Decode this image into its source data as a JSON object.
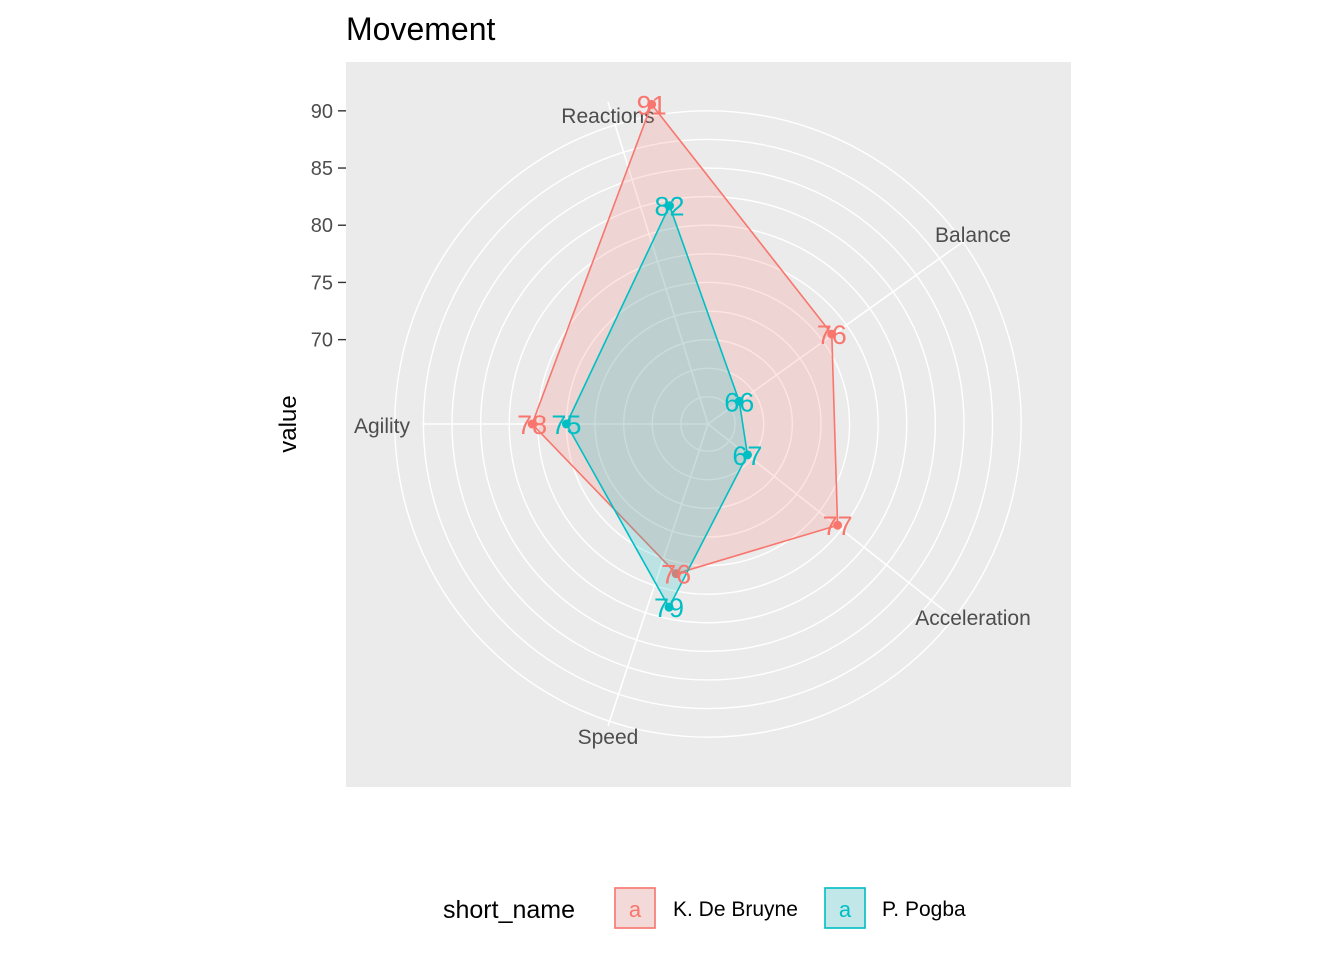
{
  "chart_data": {
    "type": "radar",
    "title": "Movement",
    "ylabel": "value",
    "axis_ticks": [
      "90",
      "85",
      "80",
      "75",
      "70"
    ],
    "tick_values": [
      90,
      85,
      80,
      75,
      70
    ],
    "categories": [
      "Reactions",
      "Balance",
      "Acceleration",
      "Speed",
      "Agility"
    ],
    "series": [
      {
        "name": "K. De Bruyne",
        "values": [
          91,
          76,
          77,
          76,
          78
        ],
        "color": "#F8766D"
      },
      {
        "name": "P. Pogba",
        "values": [
          82,
          66,
          67,
          79,
          75
        ],
        "color": "#00BFC4"
      }
    ],
    "legend": {
      "title": "short_name",
      "position": "bottom",
      "key_glyph": "a"
    },
    "grid": true
  }
}
